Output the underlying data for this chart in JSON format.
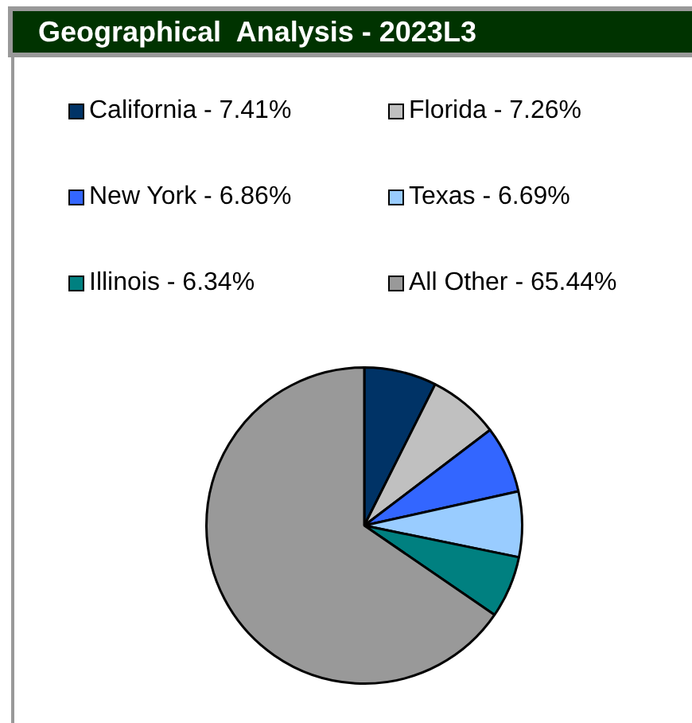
{
  "chart_data": {
    "type": "pie",
    "title": "Geographical  Analysis - 2023L3",
    "legend": "top",
    "categories": [
      "California - 7.41%",
      "Florida - 7.26%",
      "New York - 6.86%",
      "Texas - 6.69%",
      "Illinois - 6.34%",
      "All Other - 65.44%"
    ],
    "values": [
      7.41,
      7.26,
      6.86,
      6.69,
      6.34,
      65.44
    ],
    "colors": [
      "#003366",
      "#c0c0c0",
      "#3366ff",
      "#99ccff",
      "#008080",
      "#999999"
    ]
  }
}
